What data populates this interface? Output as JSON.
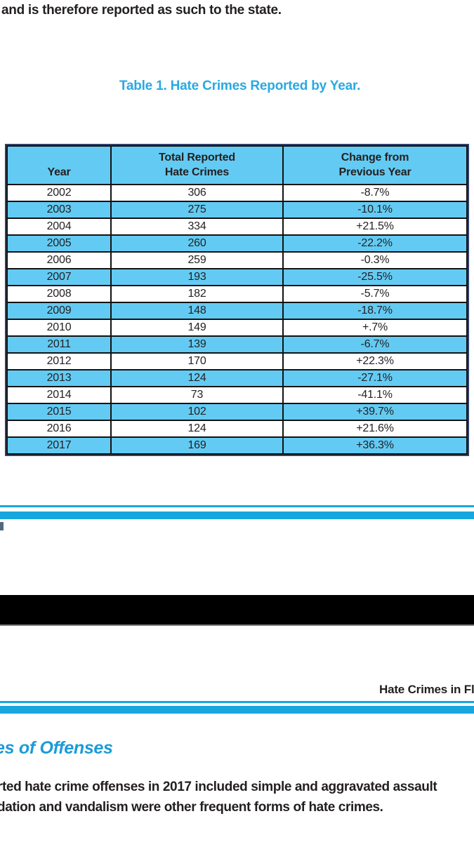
{
  "colors": {
    "table_fill_blue": "#63cbf3",
    "stripe_blue": "#18a6de",
    "title_blue": "#29a9e1",
    "heading_blue": "#1b9bd8",
    "table_outer_border_navy": "#32406a",
    "cell_border_black": "#121212",
    "text_black": "#231f20",
    "page_break_bar_black": "#000000"
  },
  "top_text": "and is therefore reported as such to the state.",
  "table_title": "Table 1. Hate Crimes Reported by Year.",
  "table": {
    "headers": [
      {
        "line1": "",
        "line2": "Year"
      },
      {
        "line1": "Total Reported",
        "line2": "Hate Crimes"
      },
      {
        "line1": "Change from",
        "line2": "Previous Year"
      }
    ],
    "rows": [
      {
        "year": "2002",
        "total": "306",
        "change": "-8.7%"
      },
      {
        "year": "2003",
        "total": "275",
        "change": "-10.1%"
      },
      {
        "year": "2004",
        "total": "334",
        "change": "+21.5%"
      },
      {
        "year": "2005",
        "total": "260",
        "change": "-22.2%"
      },
      {
        "year": "2006",
        "total": "259",
        "change": "-0.3%"
      },
      {
        "year": "2007",
        "total": "193",
        "change": "-25.5%"
      },
      {
        "year": "2008",
        "total": "182",
        "change": "-5.7%"
      },
      {
        "year": "2009",
        "total": "148",
        "change": "-18.7%"
      },
      {
        "year": "2010",
        "total": "149",
        "change": "+.7%"
      },
      {
        "year": "2011",
        "total": "139",
        "change": "-6.7%"
      },
      {
        "year": "2012",
        "total": "170",
        "change": "+22.3%"
      },
      {
        "year": "2013",
        "total": "124",
        "change": "-27.1%"
      },
      {
        "year": "2014",
        "total": "73",
        "change": "-41.1%"
      },
      {
        "year": "2015",
        "total": "102",
        "change": "+39.7%"
      },
      {
        "year": "2016",
        "total": "124",
        "change": "+21.6%"
      },
      {
        "year": "2017",
        "total": "169",
        "change": "+36.3%"
      }
    ]
  },
  "next_page_header": "Hate Crimes in Flor",
  "section_heading": "es of Offenses",
  "body_text": {
    "line1": "rted hate crime offenses in 2017 included simple and aggravated assault",
    "line2": "dation and vandalism were other frequent forms of hate crimes."
  }
}
